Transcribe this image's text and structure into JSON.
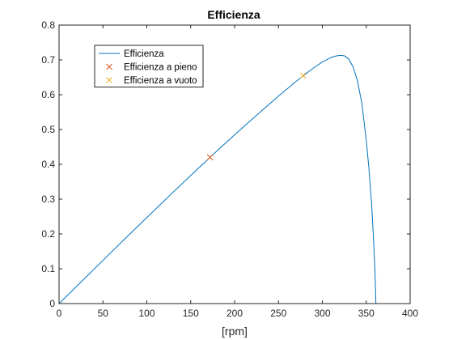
{
  "chart_data": {
    "type": "line",
    "title": "Efficienza",
    "xlabel": "[rpm]",
    "ylabel": "",
    "xlim": [
      0,
      400
    ],
    "ylim": [
      0,
      0.8
    ],
    "xticks": [
      0,
      50,
      100,
      150,
      200,
      250,
      300,
      350,
      400
    ],
    "yticks": [
      0,
      0.1,
      0.2,
      0.3,
      0.4,
      0.5,
      0.6,
      0.7,
      0.8
    ],
    "grid": false,
    "legend_position": "top-left",
    "series": [
      {
        "name": "Efficienza",
        "kind": "line",
        "color": "#0072BD",
        "x": [
          0,
          25,
          50,
          75,
          100,
          125,
          150,
          175,
          200,
          225,
          250,
          270,
          280,
          290,
          300,
          310,
          315,
          320,
          325,
          330,
          335,
          340,
          345,
          350,
          353,
          356,
          358,
          360,
          361
        ],
        "y": [
          0,
          0.062,
          0.124,
          0.186,
          0.247,
          0.308,
          0.368,
          0.427,
          0.485,
          0.541,
          0.596,
          0.638,
          0.658,
          0.677,
          0.694,
          0.707,
          0.711,
          0.713,
          0.712,
          0.703,
          0.68,
          0.64,
          0.575,
          0.47,
          0.39,
          0.29,
          0.2,
          0.09,
          0.0
        ]
      },
      {
        "name": "Efficienza a pieno",
        "kind": "marker",
        "marker": "x",
        "color": "#D95319",
        "x": [
          172
        ],
        "y": [
          0.42
        ]
      },
      {
        "name": "Efficienza a vuoto",
        "kind": "marker",
        "marker": "x",
        "color": "#EDB120",
        "x": [
          278
        ],
        "y": [
          0.655
        ]
      }
    ]
  }
}
